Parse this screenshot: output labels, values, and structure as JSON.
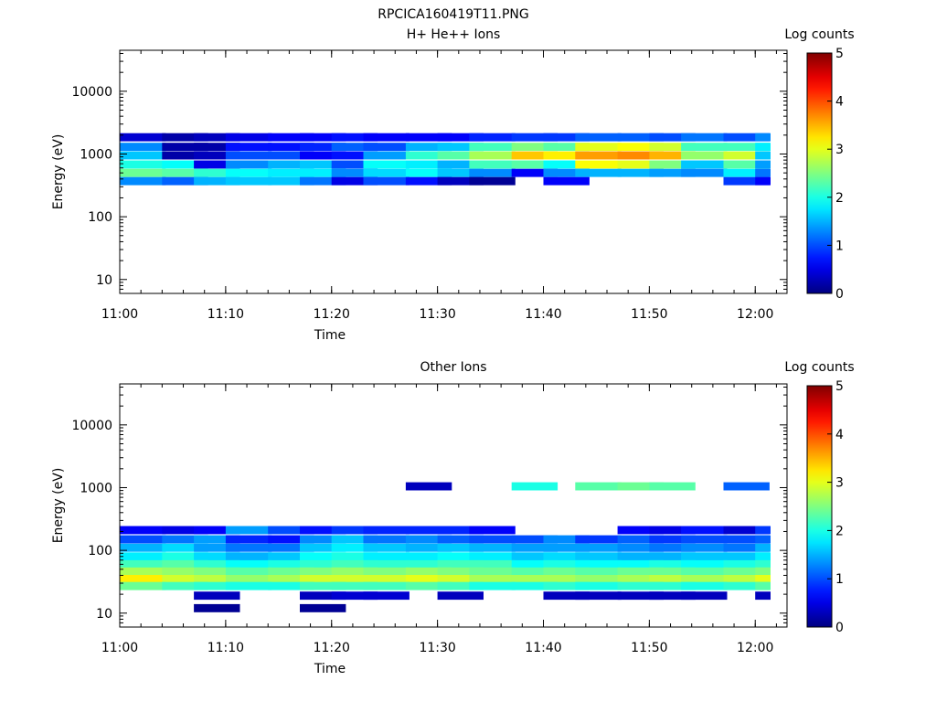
{
  "title": "RPCICA160419T11.PNG",
  "chart_data": [
    {
      "type": "heatmap",
      "title": "H+ He++ Ions",
      "xlabel": "Time",
      "ylabel": "Energy (eV)",
      "xticks": [
        "11:00",
        "11:10",
        "11:20",
        "11:30",
        "11:40",
        "11:50",
        "12:00"
      ],
      "xlim": [
        "11:00",
        "12:03"
      ],
      "yscale": "log",
      "ylim": [
        6,
        45000
      ],
      "yticks": [
        {
          "value": 10,
          "label": "10"
        },
        {
          "value": 100,
          "label": "100"
        },
        {
          "value": 1000,
          "label": "1000"
        },
        {
          "value": 10000,
          "label": "10000"
        }
      ],
      "time_bins": [
        "11:00",
        "11:04",
        "11:07",
        "11:10",
        "11:14",
        "11:17",
        "11:20",
        "11:23",
        "11:27",
        "11:30",
        "11:33",
        "11:37",
        "11:40",
        "11:43",
        "11:47",
        "11:50",
        "11:53",
        "11:57",
        "12:00"
      ],
      "colorbar": {
        "label": "Log counts",
        "min": 0,
        "max": 5,
        "ticks": [
          "0",
          "1",
          "2",
          "3",
          "4",
          "5"
        ]
      },
      "bands": [
        {
          "energy_ev": 1850,
          "counts": [
            0.4,
            0.2,
            0.3,
            0.5,
            0.6,
            0.6,
            0.7,
            0.6,
            0.6,
            0.6,
            0.8,
            0.9,
            0.9,
            1.1,
            1.1,
            1.0,
            1.2,
            1.0,
            1.3
          ]
        },
        {
          "energy_ev": 1300,
          "counts": [
            1.3,
            0.2,
            0.2,
            0.7,
            0.7,
            0.8,
            1.1,
            1.0,
            1.5,
            1.6,
            2.2,
            2.5,
            2.3,
            3.0,
            3.1,
            2.9,
            2.2,
            2.2,
            1.8
          ]
        },
        {
          "energy_ev": 950,
          "counts": [
            1.6,
            0.2,
            0.3,
            1.0,
            1.0,
            0.6,
            0.7,
            1.4,
            2.1,
            2.3,
            2.7,
            3.4,
            3.2,
            3.6,
            3.7,
            3.5,
            2.6,
            2.9,
            1.6
          ]
        },
        {
          "energy_ev": 680,
          "counts": [
            2.0,
            1.9,
            0.5,
            1.3,
            1.5,
            1.6,
            1.0,
            1.9,
            1.8,
            1.5,
            2.2,
            2.3,
            1.9,
            3.1,
            3.0,
            2.5,
            1.6,
            2.3,
            1.4
          ]
        },
        {
          "energy_ev": 500,
          "counts": [
            2.4,
            2.3,
            2.1,
            1.9,
            1.8,
            1.8,
            1.3,
            1.7,
            1.9,
            1.6,
            1.3,
            0.6,
            1.3,
            1.5,
            1.5,
            1.4,
            1.3,
            1.8,
            1.2
          ]
        },
        {
          "energy_ev": 370,
          "counts": [
            1.3,
            1.1,
            1.5,
            1.6,
            1.6,
            1.2,
            0.5,
            1.0,
            0.7,
            0.3,
            0.1,
            0.0,
            0.6,
            0.0,
            0.0,
            0.0,
            0.0,
            0.9,
            0.6
          ]
        }
      ]
    },
    {
      "type": "heatmap",
      "title": "Other Ions",
      "xlabel": "Time",
      "ylabel": "Energy (eV)",
      "xticks": [
        "11:00",
        "11:10",
        "11:20",
        "11:30",
        "11:40",
        "11:50",
        "12:00"
      ],
      "xlim": [
        "11:00",
        "12:03"
      ],
      "yscale": "log",
      "ylim": [
        6,
        45000
      ],
      "yticks": [
        {
          "value": 10,
          "label": "10"
        },
        {
          "value": 100,
          "label": "100"
        },
        {
          "value": 1000,
          "label": "1000"
        },
        {
          "value": 10000,
          "label": "10000"
        }
      ],
      "time_bins": [
        "11:00",
        "11:04",
        "11:07",
        "11:10",
        "11:14",
        "11:17",
        "11:20",
        "11:23",
        "11:27",
        "11:30",
        "11:33",
        "11:37",
        "11:40",
        "11:43",
        "11:47",
        "11:50",
        "11:53",
        "11:57",
        "12:00"
      ],
      "colorbar": {
        "label": "Log counts",
        "min": 0,
        "max": 5,
        "ticks": [
          "0",
          "1",
          "2",
          "3",
          "4",
          "5"
        ]
      },
      "bands": [
        {
          "energy_ev": 1050,
          "counts": [
            0.0,
            0.0,
            0.0,
            0.0,
            0.0,
            0.0,
            0.0,
            0.0,
            0.3,
            0.0,
            0.0,
            2.0,
            0.0,
            2.3,
            2.4,
            2.3,
            0.0,
            1.1,
            0.0
          ]
        },
        {
          "energy_ev": 210,
          "counts": [
            0.6,
            0.5,
            0.6,
            1.4,
            1.0,
            0.7,
            0.9,
            0.8,
            0.8,
            0.8,
            0.6,
            0.0,
            0.0,
            0.0,
            0.6,
            0.5,
            0.7,
            0.4,
            0.9
          ]
        },
        {
          "energy_ev": 150,
          "counts": [
            1.0,
            1.2,
            1.4,
            0.8,
            0.7,
            1.3,
            1.6,
            1.2,
            1.3,
            1.1,
            1.0,
            1.0,
            1.3,
            0.9,
            1.1,
            0.9,
            1.0,
            1.0,
            1.1
          ]
        },
        {
          "energy_ev": 110,
          "counts": [
            1.5,
            1.7,
            1.4,
            1.2,
            1.2,
            1.6,
            1.8,
            1.6,
            1.5,
            1.6,
            1.5,
            1.4,
            1.4,
            1.4,
            1.3,
            1.2,
            1.3,
            1.2,
            1.5
          ]
        },
        {
          "energy_ev": 80,
          "counts": [
            1.8,
            2.0,
            1.7,
            1.5,
            1.6,
            1.9,
            2.0,
            1.8,
            1.8,
            1.9,
            1.8,
            1.6,
            1.7,
            1.6,
            1.5,
            1.5,
            1.6,
            1.6,
            1.8
          ]
        },
        {
          "energy_ev": 60,
          "counts": [
            2.2,
            2.3,
            2.1,
            1.9,
            2.0,
            2.1,
            2.2,
            2.1,
            2.1,
            2.2,
            2.2,
            1.9,
            2.0,
            1.9,
            1.9,
            2.0,
            1.9,
            2.0,
            2.1
          ]
        },
        {
          "energy_ev": 46,
          "counts": [
            2.7,
            2.6,
            2.5,
            2.3,
            2.4,
            2.5,
            2.6,
            2.5,
            2.6,
            2.5,
            2.4,
            2.3,
            2.4,
            2.3,
            2.4,
            2.4,
            2.3,
            2.4,
            2.5
          ]
        },
        {
          "energy_ev": 35,
          "counts": [
            3.2,
            2.9,
            2.8,
            2.6,
            2.7,
            2.9,
            2.9,
            2.9,
            3.0,
            2.9,
            2.7,
            2.7,
            2.7,
            2.6,
            2.7,
            2.8,
            2.7,
            2.8,
            3.0
          ]
        },
        {
          "energy_ev": 27,
          "counts": [
            2.4,
            2.2,
            2.1,
            2.0,
            2.0,
            2.2,
            2.2,
            2.2,
            2.3,
            2.2,
            2.0,
            2.0,
            2.1,
            2.0,
            2.1,
            2.1,
            2.0,
            2.1,
            2.3
          ]
        },
        {
          "energy_ev": 19,
          "counts": [
            0.0,
            0.0,
            0.3,
            0.0,
            0.0,
            0.3,
            0.4,
            0.4,
            0.0,
            0.3,
            0.0,
            0.0,
            0.3,
            0.3,
            0.3,
            0.3,
            0.3,
            0.0,
            0.3
          ]
        },
        {
          "energy_ev": 12,
          "counts": [
            0.0,
            0.0,
            0.1,
            0.0,
            0.0,
            0.1,
            0.0,
            0.0,
            0.0,
            0.0,
            0.0,
            0.0,
            0.0,
            0.0,
            0.0,
            0.0,
            0.0,
            0.0,
            0.0
          ]
        }
      ]
    }
  ]
}
